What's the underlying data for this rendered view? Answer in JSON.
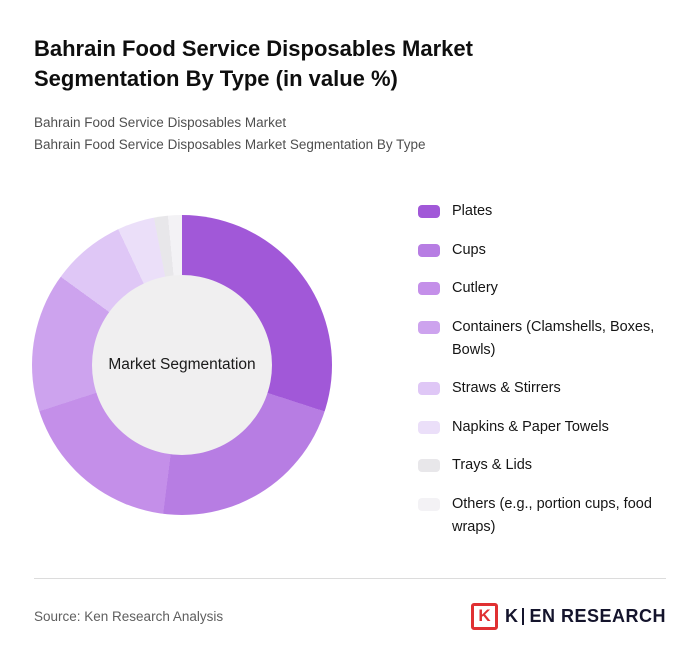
{
  "header": {
    "title": "Bahrain Food Service Disposables Market Segmentation By Type (in value %)",
    "subtitle1": "Bahrain Food Service Disposables Market",
    "subtitle2": "Bahrain Food Service Disposables Market Segmentation By Type"
  },
  "chart_data": {
    "type": "pie",
    "style": "donut",
    "title": "Bahrain Food Service Disposables Market Segmentation By Type (in value %)",
    "center_label": "Market Segmentation",
    "categories": [
      "Plates",
      "Cups",
      "Cutlery",
      "Containers (Clamshells, Boxes, Bowls)",
      "Straws & Stirrers",
      "Napkins & Paper Towels",
      "Trays & Lids",
      "Others (e.g., portion cups, food wraps)"
    ],
    "values": [
      30,
      22,
      18,
      15,
      8,
      4,
      1.5,
      1.5
    ],
    "colors": [
      "#a158d8",
      "#b77de3",
      "#c48fe9",
      "#cda3ee",
      "#dfc7f6",
      "#ebdff9",
      "#e8e7ea",
      "#f3f2f5"
    ],
    "legend_position": "right",
    "start_angle_deg": 0,
    "direction": "clockwise",
    "hole_color": "#f0eff0"
  },
  "footer": {
    "source": "Source: Ken Research Analysis",
    "logo": {
      "mark_letter": "K",
      "name_first_letter": "K",
      "name_rest": "EN RESEARCH"
    }
  }
}
